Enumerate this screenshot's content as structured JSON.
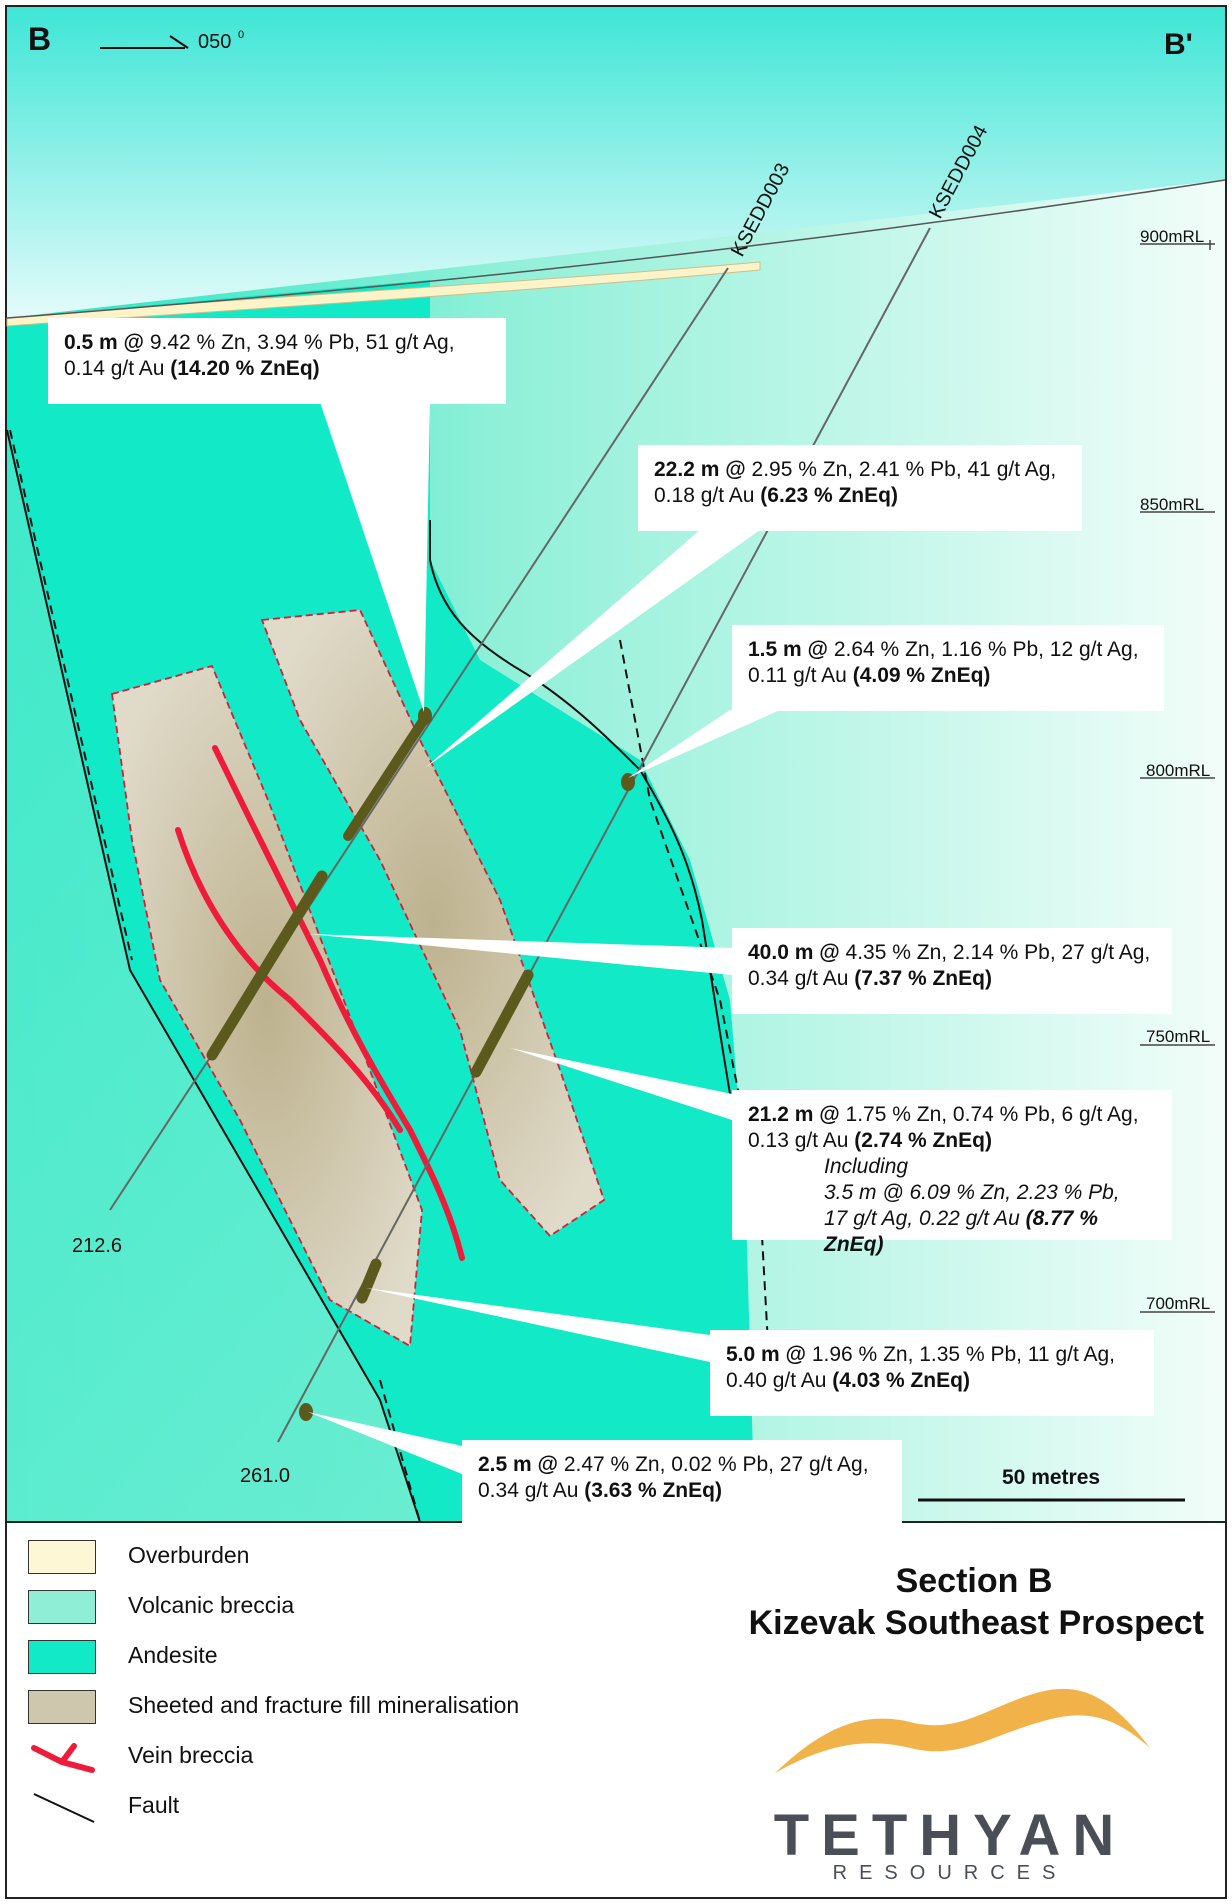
{
  "section": {
    "left_end": "B",
    "right_end": "B'",
    "azimuth": "050",
    "azimuth_unit": "0"
  },
  "elevation_labels": [
    "900mRL",
    "850mRL",
    "800mRL",
    "750mRL",
    "700mRL"
  ],
  "drillholes": [
    {
      "name": "KSEDD003",
      "end_depth": "212.6"
    },
    {
      "name": "KSEDD004",
      "end_depth": "261.0"
    }
  ],
  "callouts": [
    {
      "lead": "0.5 m @",
      "rest1": " 9.42 % Zn, 3.94 % Pb, 51 g/t Ag,",
      "rest2": "0.14 g/t Au ",
      "zneq": "(14.20 % ZnEq)"
    },
    {
      "lead": "22.2 m @",
      "rest1": " 2.95 % Zn, 2.41 % Pb, 41 g/t Ag,",
      "rest2": "0.18 g/t Au ",
      "zneq": "(6.23 % ZnEq)"
    },
    {
      "lead": "1.5 m @",
      "rest1": " 2.64 % Zn, 1.16 % Pb, 12 g/t Ag,",
      "rest2": "0.11 g/t Au ",
      "zneq": "(4.09 % ZnEq)"
    },
    {
      "lead": "40.0 m @",
      "rest1": " 4.35 % Zn, 2.14 % Pb, 27 g/t Ag,",
      "rest2": "0.34 g/t Au ",
      "zneq": "(7.37 % ZnEq)"
    },
    {
      "lead": "21.2 m @",
      "rest1": " 1.75 % Zn, 0.74 % Pb, 6 g/t Ag,",
      "rest2": "0.13 g/t Au ",
      "zneq": "(2.74 % ZnEq)",
      "inc1": "Including",
      "inc2": "3.5 m @ 6.09 % Zn, 2.23 % Pb,",
      "inc3": "17 g/t Ag, 0.22 g/t Au ",
      "inc_zneq": "(8.77 % ZnEq)"
    },
    {
      "lead": "5.0 m @",
      "rest1": " 1.96 % Zn, 1.35 % Pb, 11 g/t Ag,",
      "rest2": "0.40 g/t Au ",
      "zneq": "(4.03 % ZnEq)"
    },
    {
      "lead": "2.5 m @",
      "rest1": " 2.47 % Zn, 0.02 % Pb, 27 g/t Ag,",
      "rest2": "0.34 g/t Au ",
      "zneq": "(3.63 % ZnEq)"
    }
  ],
  "scale_bar": "50 metres",
  "legend": [
    {
      "label": "Overburden",
      "color": "#fdf7d6"
    },
    {
      "label": "Volcanic breccia",
      "color": "#8fefd6"
    },
    {
      "label": "Andesite",
      "color": "#12e9c6"
    },
    {
      "label": "Sheeted and fracture fill mineralisation",
      "color": "#cfc6ae"
    },
    {
      "label": "Vein breccia",
      "color": "#ee1c3a"
    },
    {
      "label": "Fault",
      "color": "#111111"
    }
  ],
  "title": {
    "line1": "Section B",
    "line2": "Kizevak Southeast Prospect"
  },
  "logo": {
    "name": "TETHYAN",
    "sub": "RESOURCES"
  }
}
